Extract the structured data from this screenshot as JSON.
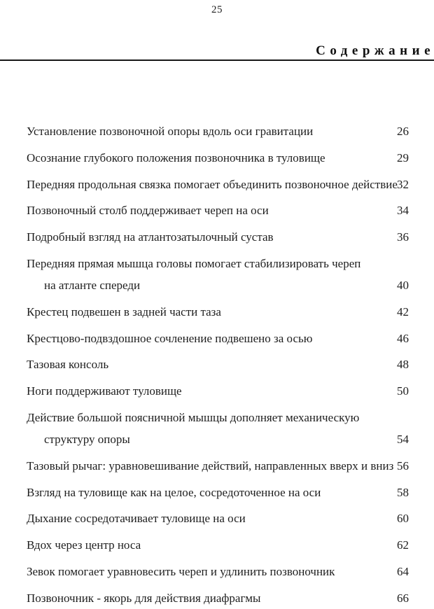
{
  "page": {
    "number": "25",
    "heading": "Содержание"
  },
  "colors": {
    "background": "#ffffff",
    "text": "#1e1e1e",
    "rule": "#161616"
  },
  "toc": {
    "entries": [
      {
        "text": "Установление позвоночной опоры вдоль оси гравитации",
        "page": "26"
      },
      {
        "text": "Осознание глубокого положения позвоночника в туловище",
        "page": "29"
      },
      {
        "text": "Передняя продольная связка помогает объединить позвоночное действие",
        "page": "32"
      },
      {
        "text": "Позвоночный столб поддерживает череп на оси",
        "page": "34"
      },
      {
        "text": "Подробный взгляд на атлантозатылочный сустав",
        "page": "36"
      },
      {
        "text": "Передняя прямая мышца головы помогает стабилизировать череп",
        "text2": "на атланте спереди",
        "page": "40"
      },
      {
        "text": "Крестец подвешен в задней части таза",
        "page": "42"
      },
      {
        "text": "Крестцово-подвздошное сочленение подвешено за осью",
        "page": "46"
      },
      {
        "text": "Тазовая консоль",
        "page": "48"
      },
      {
        "text": "Ноги поддерживают туловище",
        "page": "50"
      },
      {
        "text": "Действие большой поясничной мышцы дополняет механическую",
        "text2": "структуру опоры",
        "page": "54"
      },
      {
        "text": "Тазовый рычаг: уравновешивание действий, направленных вверх и вниз",
        "page": "56"
      },
      {
        "text": "Взгляд на туловище как на целое, сосредоточенное на оси",
        "page": "58"
      },
      {
        "text": "Дыхание сосредотачивает туловище на оси",
        "page": "60"
      },
      {
        "text": "Вдох через центр носа",
        "page": "62"
      },
      {
        "text": "Зевок помогает уравновесить череп и удлинить позвоночник",
        "page": "64"
      },
      {
        "text": "Позвоночник - якорь для действия диафрагмы",
        "page": "66"
      }
    ]
  }
}
